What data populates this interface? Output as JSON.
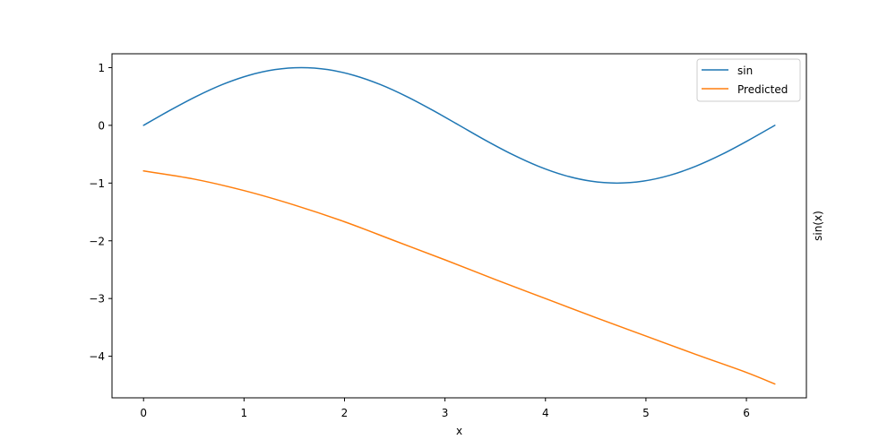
{
  "chart_data": {
    "type": "line",
    "title": "",
    "xlabel": "x",
    "ylabel": "sin(x)",
    "xlim": [
      -0.314,
      6.597
    ],
    "ylim": [
      -4.72,
      1.24
    ],
    "xticks": [
      0,
      1,
      2,
      3,
      4,
      5,
      6
    ],
    "xtick_labels": [
      "0",
      "1",
      "2",
      "3",
      "4",
      "5",
      "6"
    ],
    "yticks": [
      1,
      0,
      -1,
      -2,
      -3,
      -4
    ],
    "ytick_labels": [
      "1",
      "0",
      "−1",
      "−2",
      "−3",
      "−4"
    ],
    "grid": false,
    "legend": {
      "position": "upper right",
      "entries": [
        "sin",
        "Predicted"
      ]
    },
    "series": [
      {
        "name": "sin",
        "color": "#1f77b4",
        "x": [
          0,
          0.262,
          0.524,
          0.785,
          1.047,
          1.309,
          1.571,
          1.833,
          2.094,
          2.356,
          2.618,
          2.88,
          3.142,
          3.403,
          3.665,
          3.927,
          4.189,
          4.451,
          4.712,
          4.974,
          5.236,
          5.498,
          5.76,
          6.021,
          6.283
        ],
        "y": [
          0,
          0.259,
          0.5,
          0.707,
          0.866,
          0.966,
          1,
          0.966,
          0.866,
          0.707,
          0.5,
          0.259,
          0,
          -0.259,
          -0.5,
          -0.707,
          -0.866,
          -0.966,
          -1,
          -0.966,
          -0.866,
          -0.707,
          -0.5,
          -0.259,
          0
        ]
      },
      {
        "name": "Predicted",
        "color": "#ff7f0e",
        "x": [
          0,
          0.5,
          1,
          1.5,
          2,
          2.5,
          3,
          3.5,
          4,
          4.5,
          5,
          5.5,
          6,
          6.283
        ],
        "y": [
          -0.79,
          -0.93,
          -1.13,
          -1.38,
          -1.67,
          -2.0,
          -2.33,
          -2.67,
          -3.0,
          -3.33,
          -3.65,
          -3.97,
          -4.28,
          -4.48
        ]
      }
    ]
  }
}
